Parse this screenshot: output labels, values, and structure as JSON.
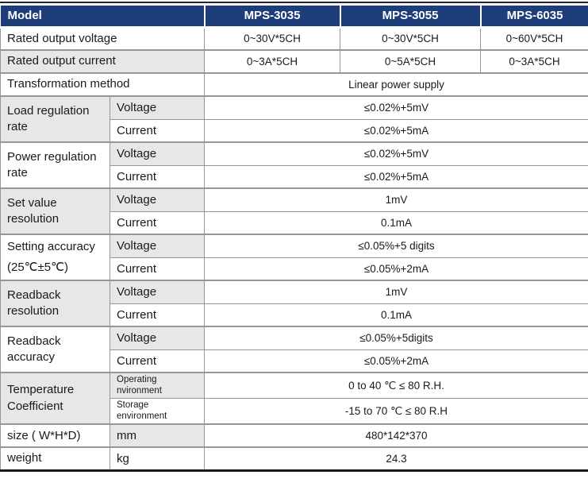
{
  "colors": {
    "header_bg": "#1e3d7b",
    "header_text": "#ffffff",
    "shaded_cell": "#e7e7e7",
    "grid_border": "#969696",
    "top_rule": "#23233a",
    "bottom_rule": "#191919",
    "text": "#1a1a1a"
  },
  "header": {
    "model_label": "Model",
    "columns": [
      "MPS-3035",
      "MPS-3055",
      "MPS-6035"
    ]
  },
  "rows": {
    "rated_output_voltage": {
      "label": "Rated output voltage",
      "values": [
        "0~30V*5CH",
        "0~30V*5CH",
        "0~60V*5CH"
      ]
    },
    "rated_output_current": {
      "label": "Rated output current",
      "values": [
        "0~3A*5CH",
        "0~5A*5CH",
        "0~3A*5CH"
      ]
    },
    "transformation_method": {
      "label": "Transformation method",
      "value": "Linear power supply"
    },
    "load_regulation_rate": {
      "label": "Load regulation rate",
      "voltage_label": "Voltage",
      "voltage_value": "≤0.02%+5mV",
      "current_label": "Current",
      "current_value": "≤0.02%+5mA"
    },
    "power_regulation_rate": {
      "label": "Power regulation rate",
      "voltage_label": "Voltage",
      "voltage_value": "≤0.02%+5mV",
      "current_label": "Current",
      "current_value": "≤0.02%+5mA"
    },
    "set_value_resolution": {
      "label": "Set value resolution",
      "voltage_label": "Voltage",
      "voltage_value": "1mV",
      "current_label": "Current",
      "current_value": "0.1mA"
    },
    "setting_accuracy": {
      "label": "Setting accuracy",
      "label_line2": "(25℃±5℃)",
      "voltage_label": "Voltage",
      "voltage_value": "≤0.05%+5 digits",
      "current_label": "Current",
      "current_value": "≤0.05%+2mA"
    },
    "readback_resolution": {
      "label": "Readback resolution",
      "voltage_label": "Voltage",
      "voltage_value": "1mV",
      "current_label": "Current",
      "current_value": "0.1mA"
    },
    "readback_accuracy": {
      "label": "Readback accuracy",
      "voltage_label": "Voltage",
      "voltage_value": "≤0.05%+5digits",
      "current_label": "Current",
      "current_value": "≤0.05%+2mA"
    },
    "temperature_coefficient": {
      "label": "Temperature Coefficient",
      "operating_label_lines": [
        "Operating",
        "nvironment"
      ],
      "operating_value": "0 to 40 ℃ ≤ 80 R.H.",
      "storage_label_lines": [
        "Storage",
        "environment"
      ],
      "storage_value": "-15 to 70 ℃ ≤ 80 R.H"
    },
    "size": {
      "label": "size ( W*H*D)",
      "unit_label": "mm",
      "value": "480*142*370"
    },
    "weight": {
      "label": "weight",
      "unit_label": "kg",
      "value": "24.3"
    }
  }
}
